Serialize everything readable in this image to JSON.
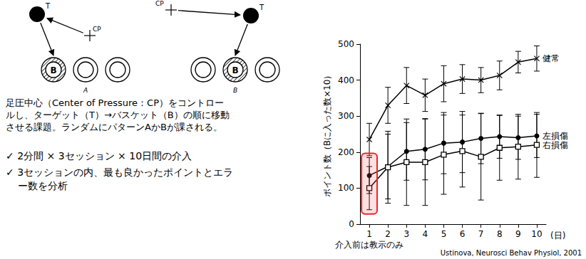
{
  "diagram": {
    "panels": [
      {
        "label": "A",
        "target": "T",
        "center_of_pressure": "CP",
        "basket": "B",
        "target_basket": 1
      },
      {
        "label": "B",
        "target": "T",
        "center_of_pressure": "CP",
        "basket": "B",
        "target_basket": 2
      }
    ],
    "description": "足圧中心（Center of Pressure：CP）をコントロールし、ターゲット（T）→バスケット（B）の順に移動させる課題。ランダムにパターンAかBが課される。",
    "bullets": [
      "✓ 2分間 × 3セッション × 10日間の介入",
      "✓ 3セッションの内、最も良かったポイントとエラー数を分析"
    ]
  },
  "chart_data": {
    "type": "line",
    "x_label": "(日)",
    "y_label": "ポイント数（Bに入った数×10）",
    "categories": [
      "1",
      "2",
      "3",
      "4",
      "5",
      "6",
      "7",
      "8",
      "9",
      "10"
    ],
    "series": [
      {
        "name": "健常",
        "color": "#000000",
        "marker": "x",
        "values": [
          235,
          330,
          385,
          358,
          390,
          403,
          400,
          413,
          450,
          460
        ],
        "errors": [
          45,
          50,
          50,
          45,
          50,
          40,
          35,
          40,
          30,
          35
        ]
      },
      {
        "name": "左損傷",
        "color": "#000000",
        "marker": "circle",
        "values": [
          135,
          160,
          202,
          208,
          225,
          228,
          238,
          243,
          240,
          245
        ],
        "errors": [
          50,
          90,
          80,
          85,
          85,
          85,
          70,
          60,
          60,
          60
        ]
      },
      {
        "name": "右損傷",
        "color": "#000000",
        "marker": "square",
        "values": [
          100,
          158,
          172,
          172,
          193,
          203,
          187,
          212,
          215,
          220
        ],
        "errors": [
          60,
          100,
          120,
          120,
          110,
          100,
          120,
          90,
          90,
          90
        ]
      }
    ],
    "ylim": [
      0,
      500
    ],
    "yticks": [
      0,
      100,
      200,
      300,
      400,
      500
    ],
    "grid": false,
    "annotations": [
      {
        "text": "介入前は教示のみ",
        "x": "1",
        "series": [
          "左損傷",
          "右損傷"
        ],
        "color": "#e8262b"
      }
    ],
    "source": "Ustinova, Neurosci Behav Physiol, 2001"
  }
}
